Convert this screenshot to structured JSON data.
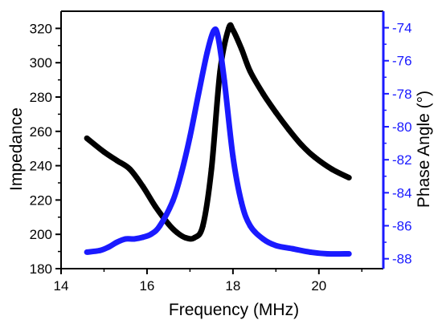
{
  "chart_data": {
    "type": "line",
    "title": "",
    "xlabel": "Frequency (MHz)",
    "ylabel_left": "Impedance",
    "ylabel_right": "Phase Angle (°)",
    "xlim": [
      14,
      21.5
    ],
    "ylim_left": [
      180,
      330
    ],
    "ylim_right": [
      -88.6,
      -73
    ],
    "x_ticks": [
      14,
      16,
      18,
      20
    ],
    "y_ticks_left": [
      180,
      200,
      220,
      240,
      260,
      280,
      300,
      320
    ],
    "y_ticks_right": [
      -88,
      -86,
      -84,
      -82,
      -80,
      -78,
      -76,
      -74
    ],
    "grid": false,
    "colors": {
      "left_axis": "#000000",
      "right_axis": "#1a1aff"
    },
    "series": [
      {
        "axis": "left",
        "color": "#000000",
        "x": [
          14.6,
          15.0,
          15.3,
          15.6,
          15.9,
          16.2,
          16.5,
          16.7,
          16.9,
          17.1,
          17.3,
          17.5,
          17.7,
          17.9,
          18.0,
          18.2,
          18.4,
          18.7,
          19.0,
          19.3,
          19.6,
          19.9,
          20.3,
          20.7
        ],
        "values": [
          256,
          248,
          243,
          238,
          228,
          216,
          206,
          201,
          198,
          198,
          205,
          238,
          295,
          320,
          319,
          308,
          295,
          282,
          271,
          261,
          252,
          245,
          238,
          233
        ]
      },
      {
        "axis": "right",
        "color": "#1a1aff",
        "x": [
          14.6,
          14.9,
          15.1,
          15.3,
          15.5,
          15.7,
          15.9,
          16.1,
          16.3,
          16.6,
          16.8,
          17.0,
          17.2,
          17.4,
          17.55,
          17.65,
          17.8,
          18.0,
          18.2,
          18.4,
          18.7,
          19.0,
          19.4,
          19.8,
          20.2,
          20.7
        ],
        "values": [
          -87.6,
          -87.5,
          -87.3,
          -87.0,
          -86.8,
          -86.8,
          -86.7,
          -86.5,
          -86.0,
          -84.5,
          -82.8,
          -80.6,
          -78.0,
          -75.5,
          -74.2,
          -74.5,
          -77.2,
          -81.8,
          -84.6,
          -86.0,
          -86.8,
          -87.2,
          -87.4,
          -87.6,
          -87.7,
          -87.7
        ]
      }
    ]
  }
}
